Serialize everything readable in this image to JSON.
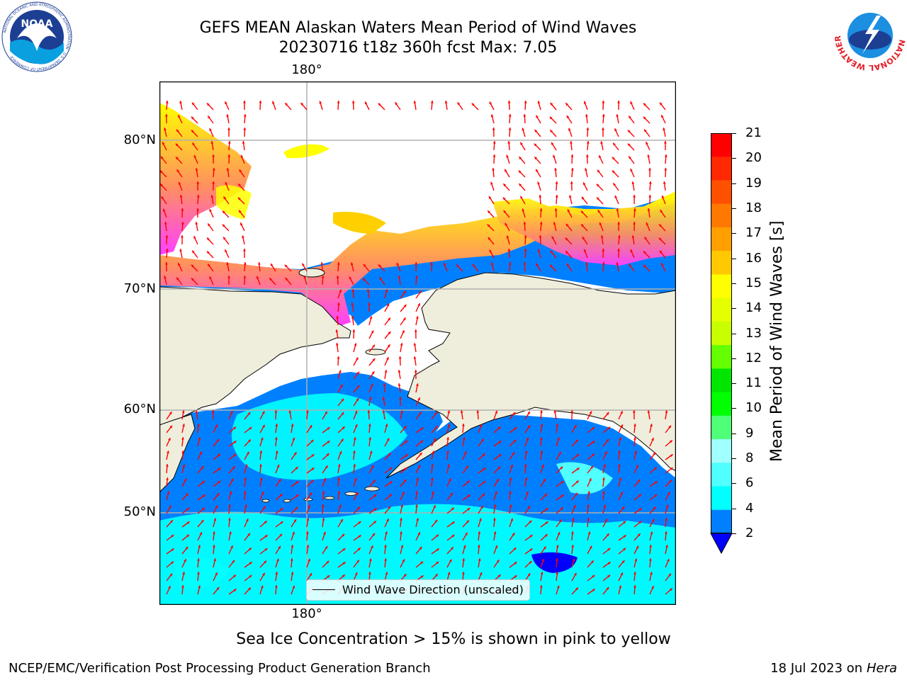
{
  "header": {
    "title_line1": "GEFS MEAN Alaskan Waters Mean Period of Wind Waves",
    "title_line2": "20230716 t18z 360h fcst   Max: 7.05"
  },
  "logos": {
    "noaa": {
      "text": "NOAA",
      "ring": "NATIONAL OCEANIC AND ATMOSPHERIC ADMINISTRATION · U.S. DEPARTMENT OF COMMERCE"
    },
    "nws": {
      "ring": "NATIONAL WEATHER SERVICE"
    }
  },
  "map": {
    "lon_label_top": "180°",
    "lon_label_bottom": "180°",
    "lat_labels": [
      "80°N",
      "70°N",
      "60°N",
      "50°N"
    ],
    "legend_label": "Wind Wave Direction (unscaled)",
    "colors": {
      "land": "#efeedc",
      "ocean_low": "#0080ff",
      "ocean_mid": "#00ffff",
      "ice_pink": "#ff40ff",
      "ice_yellow": "#ffff00",
      "arrow": "#ff0000"
    }
  },
  "colorbar": {
    "label": "Mean Period of Wind Waves [s]",
    "ticks": [
      "21",
      "20",
      "19",
      "18",
      "17",
      "16",
      "15",
      "14",
      "13",
      "12",
      "11",
      "10",
      "9",
      "8",
      "6",
      "4",
      "2"
    ],
    "colors": [
      "#ff0000",
      "#ff2800",
      "#ff5000",
      "#ff7800",
      "#ff9f00",
      "#ffc800",
      "#ffff00",
      "#e6ff00",
      "#c8ff00",
      "#64ff00",
      "#00e600",
      "#00ff00",
      "#50ff78",
      "#a0ffff",
      "#50ffff",
      "#00ffff",
      "#0080ff"
    ],
    "extend_color": "#0000ff"
  },
  "subnote": "Sea Ice Concentration > 15% is shown in pink to yellow",
  "footer": {
    "left": "NCEP/EMC/Verification Post Processing Product Generation Branch",
    "right_date": "18 Jul 2023 on",
    "right_host": "Hera"
  }
}
